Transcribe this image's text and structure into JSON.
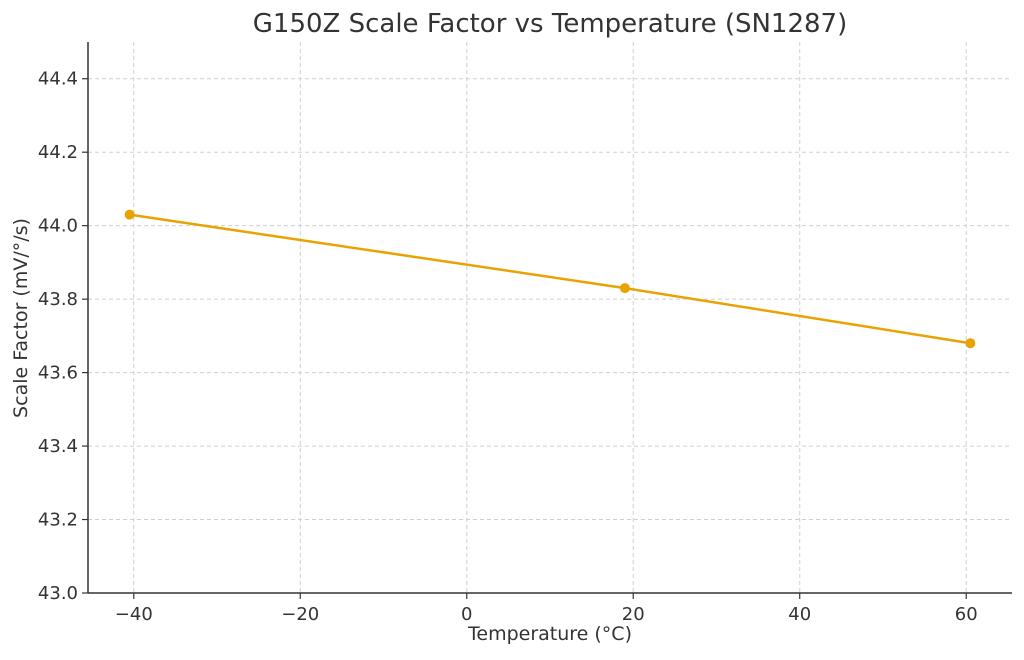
{
  "chart_data": {
    "type": "line",
    "title": "G150Z Scale Factor vs Temperature (SN1287)",
    "xlabel": "Temperature (°C)",
    "ylabel": "Scale Factor (mV/°/s)",
    "xlim": [
      -45.5,
      65.5
    ],
    "ylim": [
      43.0,
      44.5
    ],
    "xticks": [
      -40,
      -20,
      0,
      20,
      40,
      60
    ],
    "xtick_labels": [
      "−40",
      "−20",
      "0",
      "20",
      "40",
      "60"
    ],
    "yticks": [
      43.0,
      43.2,
      43.4,
      43.6,
      43.8,
      44.0,
      44.2,
      44.4
    ],
    "ytick_labels": [
      "43.0",
      "43.2",
      "43.4",
      "43.6",
      "43.8",
      "44.0",
      "44.2",
      "44.4"
    ],
    "grid": true,
    "series": [
      {
        "name": "Scale Factor",
        "color": "#E8A202",
        "marker": "circle",
        "x": [
          -40.5,
          19,
          60.5
        ],
        "y": [
          44.03,
          43.83,
          43.68
        ]
      }
    ]
  }
}
